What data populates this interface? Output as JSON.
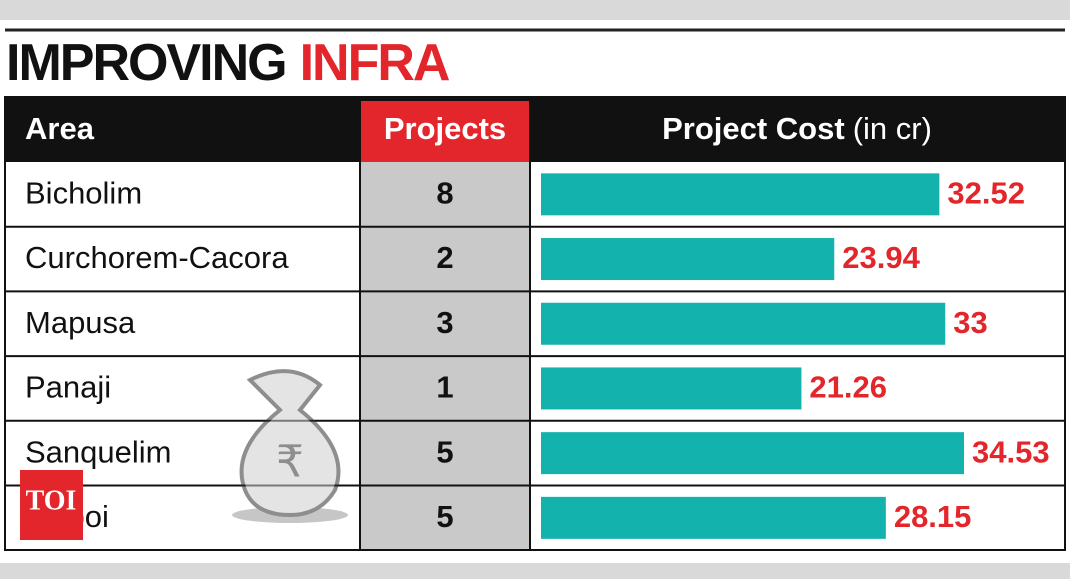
{
  "chart_data": {
    "type": "bar",
    "orientation": "horizontal",
    "title": "IMPROVING",
    "title_highlight": "INFRA",
    "header_area": "Area",
    "header_projects": "Projects",
    "header_cost": "Project Cost",
    "header_cost_unit": "(in cr)",
    "categories": [
      "Bicholim",
      "Curchorem-Cacora",
      "Mapusa",
      "Panaji",
      "Sanquelim",
      "Valpoi"
    ],
    "projects": [
      8,
      2,
      3,
      1,
      5,
      5
    ],
    "values": [
      32.52,
      23.94,
      33,
      21.26,
      34.53,
      28.15
    ],
    "color": "#14b2ac",
    "label_color": "#e3262b",
    "xlim": [
      0,
      36
    ],
    "watermark": "TOI"
  }
}
